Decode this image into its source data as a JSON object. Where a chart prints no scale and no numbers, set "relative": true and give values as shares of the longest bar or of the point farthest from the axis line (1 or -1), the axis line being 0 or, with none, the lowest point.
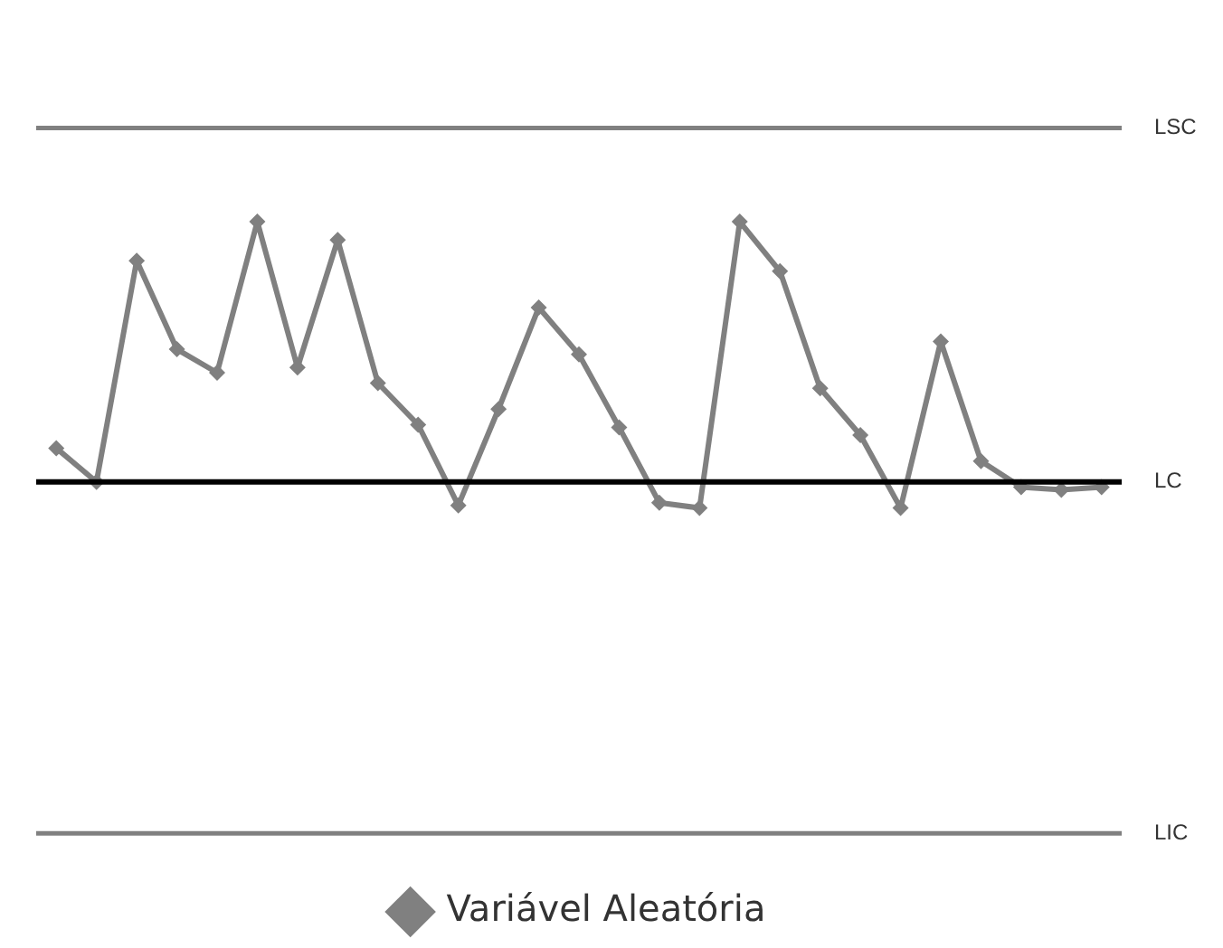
{
  "chart_data": {
    "type": "line",
    "relative": true,
    "categories": [
      null,
      null,
      null,
      null,
      null,
      null,
      null,
      null,
      null,
      null,
      null,
      null,
      null,
      null,
      null,
      null,
      null,
      null,
      null,
      null,
      null,
      null,
      null,
      null,
      null,
      null,
      null
    ],
    "series": [
      {
        "name": "Variável Aleatória",
        "color": "#808080",
        "values": [
          0.13,
          0,
          0.85,
          0.51,
          0.42,
          1,
          0.44,
          0.93,
          0.38,
          0.22,
          -0.09,
          0.28,
          0.67,
          0.49,
          0.21,
          -0.08,
          -0.1,
          1,
          0.81,
          0.36,
          0.18,
          -0.1,
          0.54,
          0.08,
          -0.02,
          -0.03,
          -0.02
        ]
      }
    ],
    "ref_lines": [
      {
        "axis": "y",
        "value": 1.36,
        "label": "LSC",
        "color": "#808080"
      },
      {
        "axis": "y",
        "value": 0,
        "label": "LC",
        "color": "#000000"
      },
      {
        "axis": "y",
        "value": -1.35,
        "label": "LIC",
        "color": "#808080"
      }
    ],
    "marker": "diamond",
    "line_style": "solid",
    "legend": "bottom"
  }
}
